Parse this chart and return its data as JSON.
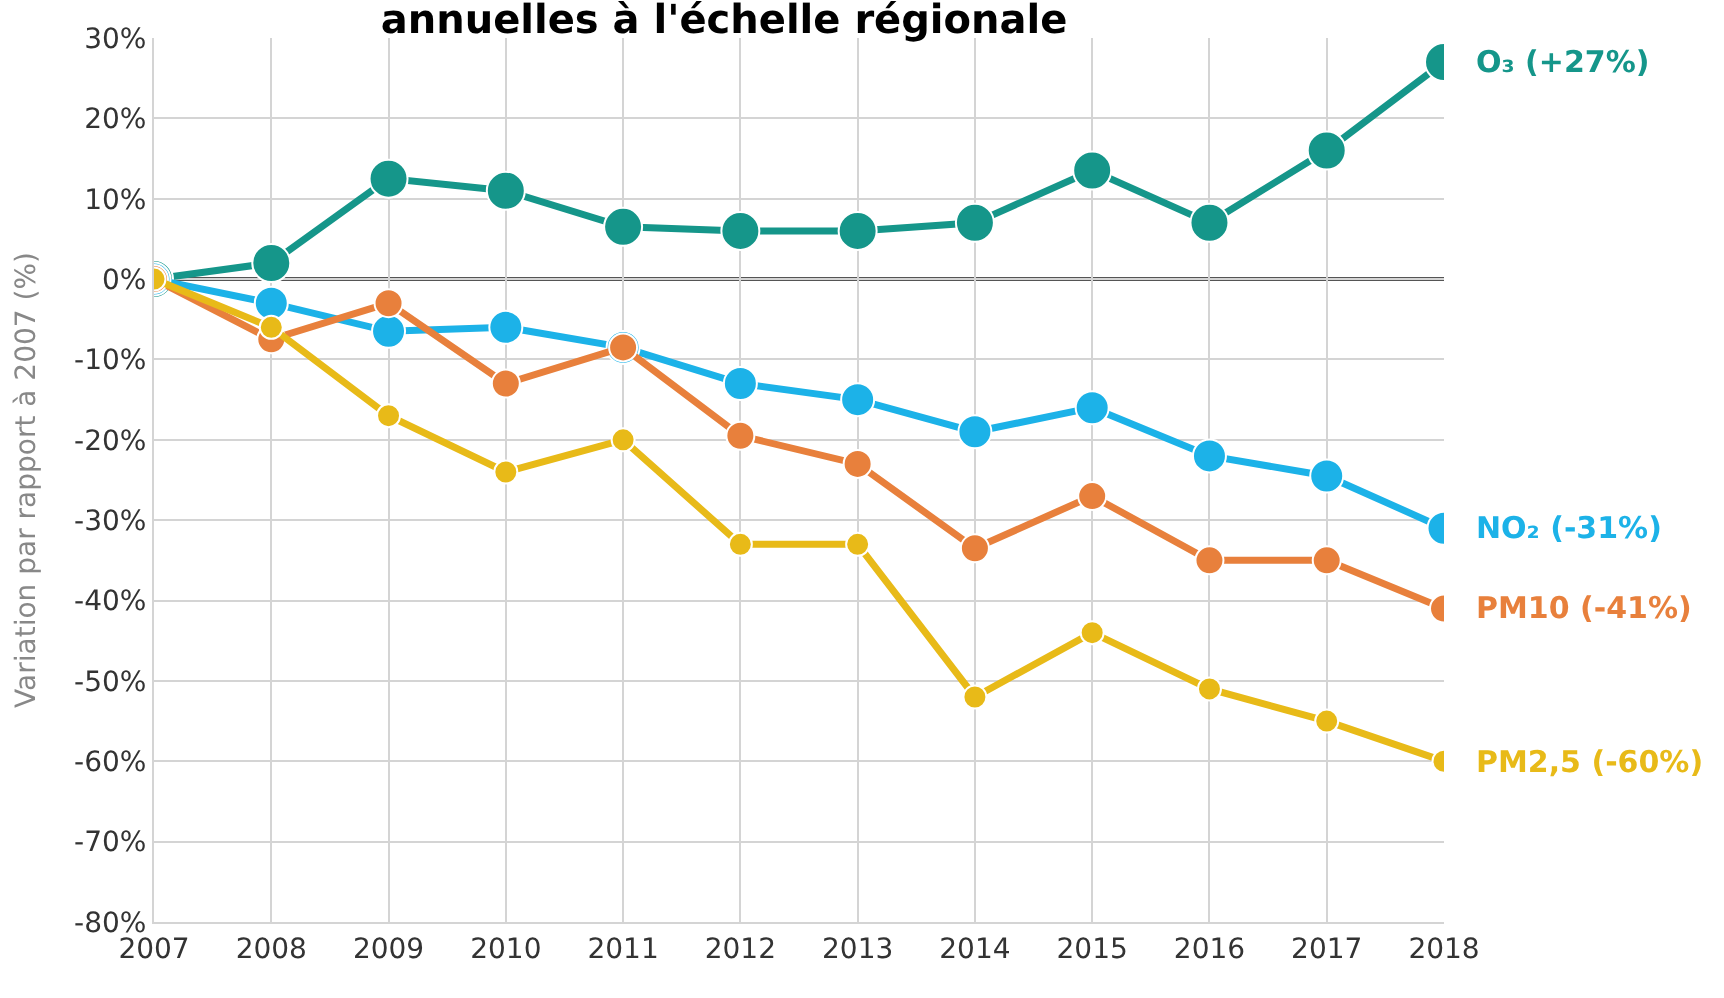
{
  "chart_data": {
    "type": "line",
    "title": "annuelles à l'échelle régionale",
    "ylabel": "Variation par rapport à 2007 (%)",
    "categories": [
      "2007",
      "2008",
      "2009",
      "2010",
      "2011",
      "2012",
      "2013",
      "2014",
      "2015",
      "2016",
      "2017",
      "2018"
    ],
    "series": [
      {
        "name": "O₃ (+27%)",
        "color": "#15968a",
        "values": [
          0,
          2,
          12.5,
          11,
          6.5,
          6,
          6,
          7,
          13.5,
          7,
          16,
          27
        ]
      },
      {
        "name": "NO₂ (-31%)",
        "color": "#1cb2e8",
        "values": [
          0,
          -3,
          -6.5,
          -6,
          -8.5,
          -13,
          -15,
          -19,
          -16,
          -22,
          -24.5,
          -31
        ]
      },
      {
        "name": "PM10 (-41%)",
        "color": "#e8803c",
        "values": [
          0,
          -7.5,
          -3,
          -13,
          -8.5,
          -19.5,
          -23,
          -33.5,
          -27,
          -35,
          -35,
          -41
        ]
      },
      {
        "name": "PM2,5 (-60%)",
        "color": "#e8ba18",
        "values": [
          0,
          -6,
          -17,
          -24,
          -20,
          -33,
          -33,
          -52,
          -44,
          -51,
          -55,
          -60
        ]
      }
    ],
    "ylim": [
      -80,
      30
    ],
    "yticks": [
      {
        "value": -80,
        "label": "-80%"
      },
      {
        "value": -70,
        "label": "-70%"
      },
      {
        "value": -60,
        "label": "-60%"
      },
      {
        "value": -50,
        "label": "-50%"
      },
      {
        "value": -40,
        "label": "-40%"
      },
      {
        "value": -30,
        "label": "-30%"
      },
      {
        "value": -20,
        "label": "-20%"
      },
      {
        "value": -10,
        "label": "-10%"
      },
      {
        "value": 0,
        "label": "0%"
      },
      {
        "value": 10,
        "label": "10%"
      },
      {
        "value": 20,
        "label": "20%"
      },
      {
        "value": 30,
        "label": "30%"
      }
    ],
    "ref_lines": [
      {
        "axis": "y",
        "value": 0,
        "color": "#555555"
      }
    ],
    "grid": true,
    "legend": false,
    "marker": "circle",
    "line_style": "solid"
  }
}
